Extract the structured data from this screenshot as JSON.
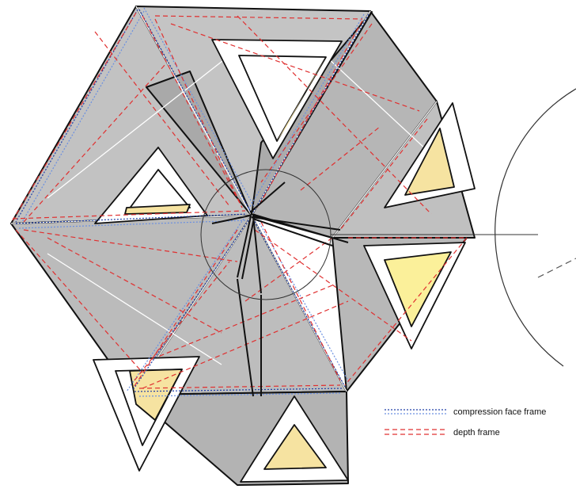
{
  "legend": {
    "items": [
      {
        "key": "compression",
        "label": "compression face frame",
        "colors": [
          "#1f3fa8",
          "#6a8fe0"
        ],
        "dash": "dotted"
      },
      {
        "key": "depth",
        "label": "depth frame",
        "colors": [
          "#e03030",
          "#e03030"
        ],
        "dash": "dashed"
      }
    ]
  },
  "colors": {
    "panel": "#bdbdbd",
    "panel_dark": "#a9a9a9",
    "panel_light": "#cfcfcf",
    "inner_fill": "#f6e3a1",
    "inner_fill_bright": "#fbf09a",
    "edge": "#111111",
    "background": "#ffffff"
  },
  "icons": {
    "detail_circle": "circle-outline",
    "hub": "strut-hub"
  }
}
